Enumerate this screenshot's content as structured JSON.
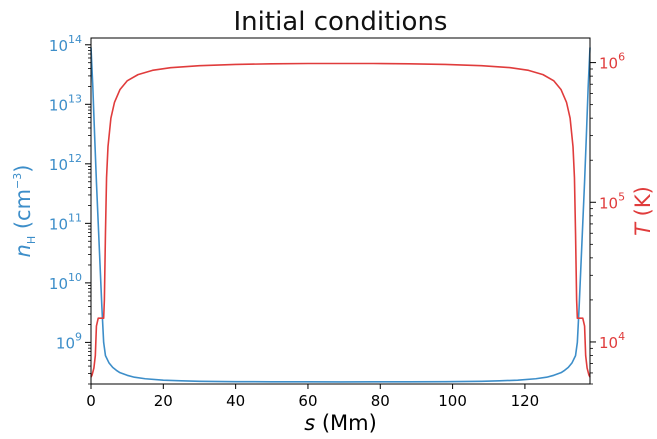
{
  "chart_data": {
    "type": "line",
    "title": "Initial conditions",
    "xlabel": "s (Mm)",
    "ylabel_left": "n_H (cm^-3)",
    "ylabel_right": "T (K)",
    "xlim": [
      0,
      138
    ],
    "ylim_left": [
      200000000,
      130000000000000
    ],
    "ylim_right": [
      5000,
      1500000
    ],
    "yscale_left": "log",
    "yscale_right": "log",
    "grid": false,
    "legend": "none",
    "x_ticks": [
      "0",
      "20",
      "40",
      "60",
      "80",
      "100",
      "120"
    ],
    "y_left_ticks": [
      {
        "base": "10",
        "exp": "9",
        "value": 1000000000.0
      },
      {
        "base": "10",
        "exp": "10",
        "value": 10000000000.0
      },
      {
        "base": "10",
        "exp": "11",
        "value": 100000000000.0
      },
      {
        "base": "10",
        "exp": "12",
        "value": 1000000000000.0
      },
      {
        "base": "10",
        "exp": "13",
        "value": 10000000000000.0
      },
      {
        "base": "10",
        "exp": "14",
        "value": 100000000000000.0
      }
    ],
    "y_right_ticks": [
      {
        "base": "10",
        "exp": "4",
        "value": 10000.0
      },
      {
        "base": "10",
        "exp": "5",
        "value": 100000.0
      },
      {
        "base": "10",
        "exp": "6",
        "value": 1000000.0
      }
    ],
    "series": [
      {
        "axis": "left",
        "color": "#3d8ec9",
        "x": [
          0,
          0.5,
          1,
          1.5,
          2,
          2.5,
          3,
          3.5,
          4,
          5,
          6,
          7,
          8,
          10,
          12,
          15,
          20,
          25,
          30,
          40,
          50,
          60,
          69,
          78,
          88,
          98,
          108,
          113,
          118,
          123,
          126,
          128,
          130,
          131,
          132,
          133,
          134,
          134.5,
          135,
          135.5,
          136,
          136.5,
          137,
          137.5,
          138
        ],
        "y": [
          90000000000000.0,
          20000000000000.0,
          3000000000000.0,
          500000000000.0,
          100000000000.0,
          20000000000.0,
          4000000000.0,
          1000000000.0,
          600000000.0,
          450000000.0,
          380000000.0,
          340000000.0,
          310000000.0,
          280000000.0,
          260000000.0,
          245000000.0,
          232000000.0,
          226000000.0,
          222000000.0,
          219000000.0,
          218000000.0,
          217500000.0,
          217000000.0,
          217500000.0,
          218000000.0,
          219000000.0,
          222000000.0,
          226000000.0,
          232000000.0,
          245000000.0,
          260000000.0,
          280000000.0,
          310000000.0,
          340000000.0,
          380000000.0,
          450000000.0,
          600000000.0,
          1000000000.0,
          4000000000.0,
          20000000000.0,
          100000000000.0,
          500000000000.0,
          3000000000000.0,
          20000000000000.0,
          90000000000000.0
        ]
      },
      {
        "axis": "right",
        "color": "#e03c3c",
        "x": [
          0,
          0.3,
          0.8,
          1.2,
          1.5,
          2,
          2.5,
          3,
          3.5,
          3.7,
          4,
          4.3,
          4.7,
          5.5,
          6.5,
          8,
          10,
          13,
          17,
          22,
          30,
          40,
          50,
          60,
          69,
          78,
          88,
          98,
          108,
          116,
          121,
          125,
          128,
          130,
          131.5,
          132.5,
          133.3,
          133.7,
          134,
          134.3,
          134.5,
          135,
          135.5,
          136,
          136.5,
          136.8,
          137.2,
          137.7,
          138
        ],
        "y": [
          5600,
          5800,
          6500,
          8000,
          13000,
          14800,
          14800,
          14800,
          14800,
          20000,
          60000,
          150000,
          250000,
          400000,
          520000,
          640000,
          740000,
          820000,
          880000,
          920000,
          950000,
          970000,
          980000,
          985000,
          985000,
          985000,
          980000,
          970000,
          950000,
          920000,
          880000,
          820000,
          740000,
          640000,
          520000,
          400000,
          250000,
          150000,
          60000,
          20000,
          14800,
          14800,
          14800,
          14800,
          13000,
          8000,
          6500,
          5800,
          5600
        ]
      }
    ]
  }
}
